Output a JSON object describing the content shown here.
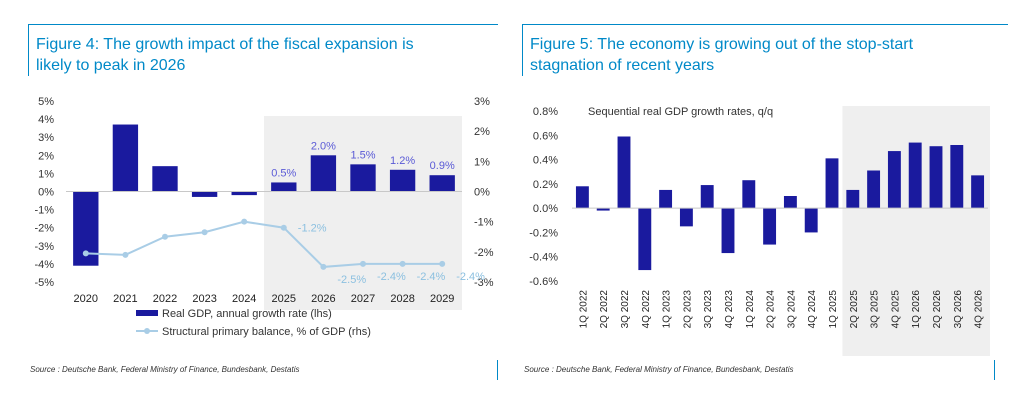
{
  "figures": [
    {
      "title": "Figure 4: The growth impact of the fiscal expansion is\nlikely to peak in 2026",
      "source": "Source : Deutsche Bank, Federal Ministry of Finance, Bundesbank, Destatis"
    },
    {
      "title": "Figure 5: The economy is growing out of the stop-start\nstagnation of recent years",
      "source": "Source : Deutsche Bank, Federal Ministry of Finance, Bundesbank, Destatis"
    }
  ],
  "colors": {
    "accent": "#0089c8",
    "bar": "#1a1a9e",
    "line": "#a9cde6",
    "label": "#5a5ad6",
    "shade": "#efefef"
  },
  "chart_data": [
    {
      "type": "bar",
      "categories": [
        "2020",
        "2021",
        "2022",
        "2023",
        "2024",
        "2025",
        "2026",
        "2027",
        "2028",
        "2029"
      ],
      "series": [
        {
          "name": "Real GDP, annual growth rate (lhs)",
          "axis": "left",
          "type": "bar",
          "values": [
            -4.1,
            3.7,
            1.4,
            -0.3,
            -0.2,
            0.5,
            2.0,
            1.5,
            1.2,
            0.9
          ],
          "data_labels": [
            "",
            "",
            "",
            "",
            "",
            "0.5%",
            "2.0%",
            "1.5%",
            "1.2%",
            "0.9%"
          ]
        },
        {
          "name": "Structural primary balance, % of GDP (rhs)",
          "axis": "right",
          "type": "line",
          "values": [
            -2.05,
            -2.1,
            -1.5,
            -1.35,
            -1.0,
            -1.2,
            -2.5,
            -2.4,
            -2.4,
            -2.4
          ],
          "data_labels": [
            "",
            "",
            "",
            "",
            "",
            "-1.2%",
            "-2.5%",
            "-2.4%",
            "-2.4%",
            "-2.4%"
          ]
        }
      ],
      "y_left": {
        "min": -5,
        "max": 5,
        "ticks": [
          "5%",
          "4%",
          "3%",
          "2%",
          "1%",
          "0%",
          "-1%",
          "-2%",
          "-3%",
          "-4%",
          "-5%"
        ]
      },
      "y_right": {
        "min": -3,
        "max": 3,
        "ticks": [
          "3%",
          "2%",
          "1%",
          "0%",
          "-1%",
          "-2%",
          "-3%"
        ]
      },
      "shaded_from": "2025",
      "legend": "bottom",
      "grid": false
    },
    {
      "type": "bar",
      "annotation": "Sequential real GDP growth rates, q/q",
      "categories": [
        "1Q 2022",
        "2Q 2022",
        "3Q 2022",
        "4Q 2022",
        "1Q 2023",
        "2Q 2023",
        "3Q 2023",
        "4Q 2023",
        "1Q 2024",
        "2Q 2024",
        "3Q 2024",
        "4Q 2024",
        "1Q 2025",
        "2Q 2025",
        "3Q 2025",
        "4Q 2025",
        "1Q 2026",
        "2Q 2026",
        "3Q 2026",
        "4Q 2026"
      ],
      "values": [
        0.18,
        -0.02,
        0.59,
        -0.51,
        0.15,
        -0.15,
        0.19,
        -0.37,
        0.23,
        -0.3,
        0.1,
        -0.2,
        0.41,
        0.15,
        0.31,
        0.47,
        0.54,
        0.51,
        0.52,
        0.27
      ],
      "y": {
        "min": -0.6,
        "max": 0.8,
        "ticks": [
          "0.8%",
          "0.6%",
          "0.4%",
          "0.2%",
          "0.0%",
          "-0.2%",
          "-0.4%",
          "-0.6%"
        ]
      },
      "shaded_from": "2Q 2025",
      "grid": false
    }
  ]
}
